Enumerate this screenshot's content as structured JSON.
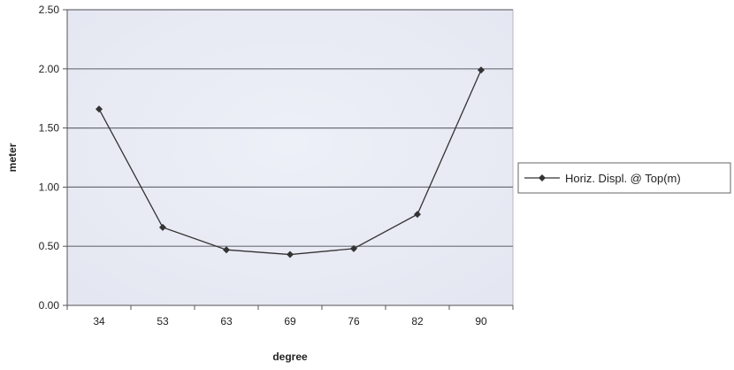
{
  "chart_data": {
    "type": "line",
    "categories": [
      "34",
      "53",
      "63",
      "69",
      "76",
      "82",
      "90"
    ],
    "series": [
      {
        "name": "Horiz. Displ. @ Top(m)",
        "values": [
          1.66,
          0.66,
          0.47,
          0.43,
          0.48,
          0.77,
          1.99
        ],
        "color": "#333333"
      }
    ],
    "xlabel": "degree",
    "ylabel": "meter",
    "ylim": [
      0,
      2.5
    ],
    "yticks": [
      "0.00",
      "0.50",
      "1.00",
      "1.50",
      "2.00",
      "2.50"
    ],
    "grid": "horizontal",
    "legend": "right",
    "colors": {
      "plot_background": "#e9eaf4",
      "gridline": "#6c6f78",
      "series_line": "#333333",
      "text": "#222222"
    }
  }
}
